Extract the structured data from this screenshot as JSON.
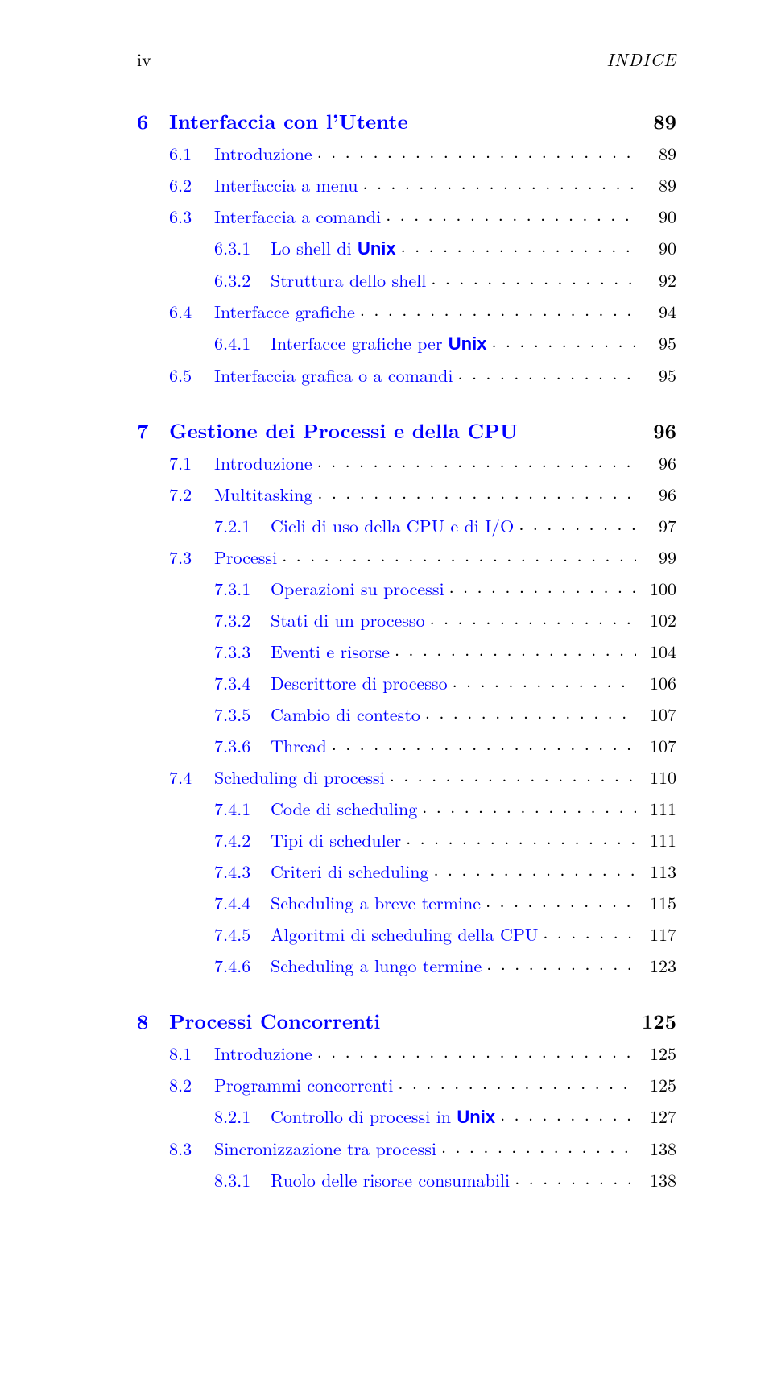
{
  "colors": {
    "link": "#0000ff",
    "text": "#000000",
    "background": "#ffffff"
  },
  "running_head": {
    "left": "iv",
    "right": "INDICE"
  },
  "entries": [
    {
      "level": "chapter",
      "num": "6",
      "title_html": "Interfaccia con l’Utente",
      "page": "89",
      "leaders": false,
      "blue": true
    },
    {
      "level": "section",
      "num": "6.1",
      "title_html": "Introduzione",
      "page": "89",
      "blue": true
    },
    {
      "level": "section",
      "num": "6.2",
      "title_html": "Interfaccia a menu",
      "page": "89",
      "blue": true
    },
    {
      "level": "section",
      "num": "6.3",
      "title_html": "Interfaccia a comandi",
      "page": "90",
      "blue": true
    },
    {
      "level": "subsection",
      "num": "6.3.1",
      "title_html": "Lo shell di <span class=\"sans\">Unix</span>",
      "page": "90",
      "blue": true
    },
    {
      "level": "subsection",
      "num": "6.3.2",
      "title_html": "Struttura dello shell",
      "page": "92",
      "blue": true
    },
    {
      "level": "section",
      "num": "6.4",
      "title_html": "Interfacce grafiche",
      "page": "94",
      "blue": true
    },
    {
      "level": "subsection",
      "num": "6.4.1",
      "title_html": "Interfacce grafiche per <span class=\"sans\">Unix</span>",
      "page": "95",
      "blue": true
    },
    {
      "level": "section",
      "num": "6.5",
      "title_html": "Interfaccia grafica o a comandi",
      "page": "95",
      "blue": true
    },
    {
      "level": "chapter",
      "num": "7",
      "title_html": "Gestione dei Processi e della CPU",
      "page": "96",
      "leaders": false,
      "blue": true
    },
    {
      "level": "section",
      "num": "7.1",
      "title_html": "Introduzione",
      "page": "96",
      "blue": true
    },
    {
      "level": "section",
      "num": "7.2",
      "title_html": "Multitasking",
      "page": "96",
      "blue": true
    },
    {
      "level": "subsection",
      "num": "7.2.1",
      "title_html": "Cicli di uso della CPU e di I/O",
      "page": "97",
      "blue": true
    },
    {
      "level": "section",
      "num": "7.3",
      "title_html": "Processi",
      "page": "99",
      "blue": true
    },
    {
      "level": "subsection",
      "num": "7.3.1",
      "title_html": "Operazioni su processi",
      "page": "100",
      "blue": true
    },
    {
      "level": "subsection",
      "num": "7.3.2",
      "title_html": "Stati di un processo",
      "page": "102",
      "blue": true
    },
    {
      "level": "subsection",
      "num": "7.3.3",
      "title_html": "Eventi e risorse",
      "page": "104",
      "blue": true
    },
    {
      "level": "subsection",
      "num": "7.3.4",
      "title_html": "Descrittore di processo",
      "page": "106",
      "blue": true
    },
    {
      "level": "subsection",
      "num": "7.3.5",
      "title_html": "Cambio di contesto",
      "page": "107",
      "blue": true
    },
    {
      "level": "subsection",
      "num": "7.3.6",
      "title_html": "Thread",
      "page": "107",
      "blue": true
    },
    {
      "level": "section",
      "num": "7.4",
      "title_html": "Scheduling di processi",
      "page": "110",
      "blue": true
    },
    {
      "level": "subsection",
      "num": "7.4.1",
      "title_html": "Code di scheduling",
      "page": "111",
      "blue": true
    },
    {
      "level": "subsection",
      "num": "7.4.2",
      "title_html": "Tipi di scheduler",
      "page": "111",
      "blue": true
    },
    {
      "level": "subsection",
      "num": "7.4.3",
      "title_html": "Criteri di scheduling",
      "page": "113",
      "blue": true
    },
    {
      "level": "subsection",
      "num": "7.4.4",
      "title_html": "Scheduling a breve termine",
      "page": "115",
      "blue": true
    },
    {
      "level": "subsection",
      "num": "7.4.5",
      "title_html": "Algoritmi di scheduling della CPU",
      "page": "117",
      "blue": true
    },
    {
      "level": "subsection",
      "num": "7.4.6",
      "title_html": "Scheduling a lungo termine",
      "page": "123",
      "blue": true
    },
    {
      "level": "chapter",
      "num": "8",
      "title_html": "Processi Concorrenti",
      "page": "125",
      "leaders": false,
      "blue": true
    },
    {
      "level": "section",
      "num": "8.1",
      "title_html": "Introduzione",
      "page": "125",
      "blue": true
    },
    {
      "level": "section",
      "num": "8.2",
      "title_html": "Programmi concorrenti",
      "page": "125",
      "blue": true
    },
    {
      "level": "subsection",
      "num": "8.2.1",
      "title_html": "Controllo di processi in <span class=\"sans\">Unix</span>",
      "page": "127",
      "blue": true
    },
    {
      "level": "section",
      "num": "8.3",
      "title_html": "Sincronizzazione tra processi",
      "page": "138",
      "blue": true
    },
    {
      "level": "subsection",
      "num": "8.3.1",
      "title_html": "Ruolo delle risorse consumabili",
      "page": "138",
      "blue": true
    }
  ]
}
